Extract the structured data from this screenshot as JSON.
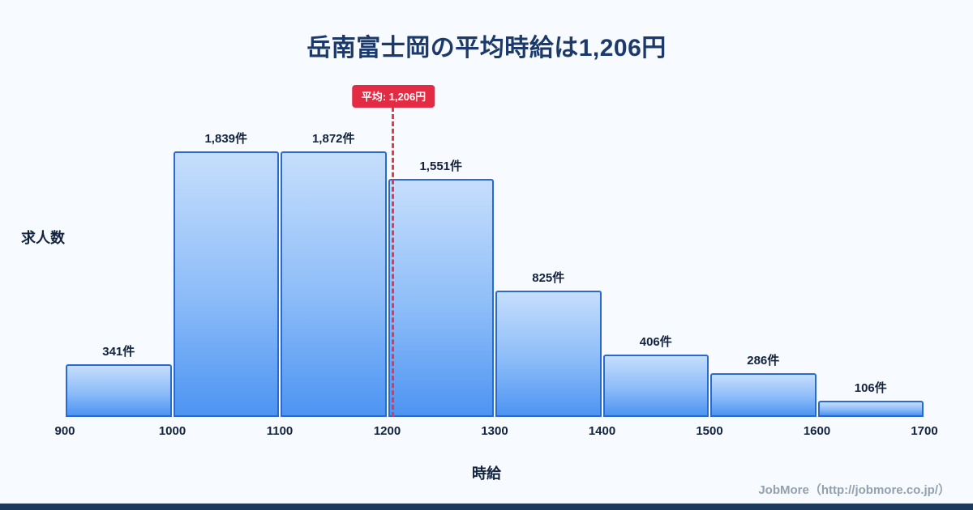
{
  "page": {
    "title": "岳南富士岡の平均時給は1,206円",
    "footer": "JobMore（http://jobmore.co.jp/）"
  },
  "chart_data": {
    "type": "bar",
    "subtype": "histogram",
    "title": "岳南富士岡の平均時給は1,206円",
    "xlabel": "時給",
    "ylabel": "求人数",
    "xlim": [
      900,
      1700
    ],
    "ylim": [
      0,
      2000
    ],
    "grid": false,
    "legend": false,
    "x_ticks": [
      "900",
      "1000",
      "1100",
      "1200",
      "1300",
      "1400",
      "1500",
      "1600",
      "1700"
    ],
    "bins": [
      {
        "x0": 900,
        "x1": 1000,
        "count": 341,
        "label": "341件"
      },
      {
        "x0": 1000,
        "x1": 1100,
        "count": 1839,
        "label": "1,839件"
      },
      {
        "x0": 1100,
        "x1": 1200,
        "count": 1872,
        "label": "1,872件"
      },
      {
        "x0": 1200,
        "x1": 1300,
        "count": 1551,
        "label": "1,551件"
      },
      {
        "x0": 1300,
        "x1": 1400,
        "count": 825,
        "label": "825件"
      },
      {
        "x0": 1400,
        "x1": 1500,
        "count": 406,
        "label": "406件"
      },
      {
        "x0": 1500,
        "x1": 1600,
        "count": 286,
        "label": "286件"
      },
      {
        "x0": 1600,
        "x1": 1700,
        "count": 106,
        "label": "106件"
      }
    ],
    "average": {
      "value": 1206,
      "label": "平均: 1,206円"
    },
    "colors": {
      "background": "#f7fafe",
      "title": "#1b3a6b",
      "bar_gradient_top": "#c6defc",
      "bar_gradient_bottom": "#4d94f2",
      "bar_border": "#2a6ad0",
      "average_line": "#e8374a",
      "average_badge_bg": "#e32b43",
      "average_badge_text": "#ffffff",
      "footer_text": "#93a0b0",
      "bottom_bar": "#1c3a5e"
    }
  }
}
